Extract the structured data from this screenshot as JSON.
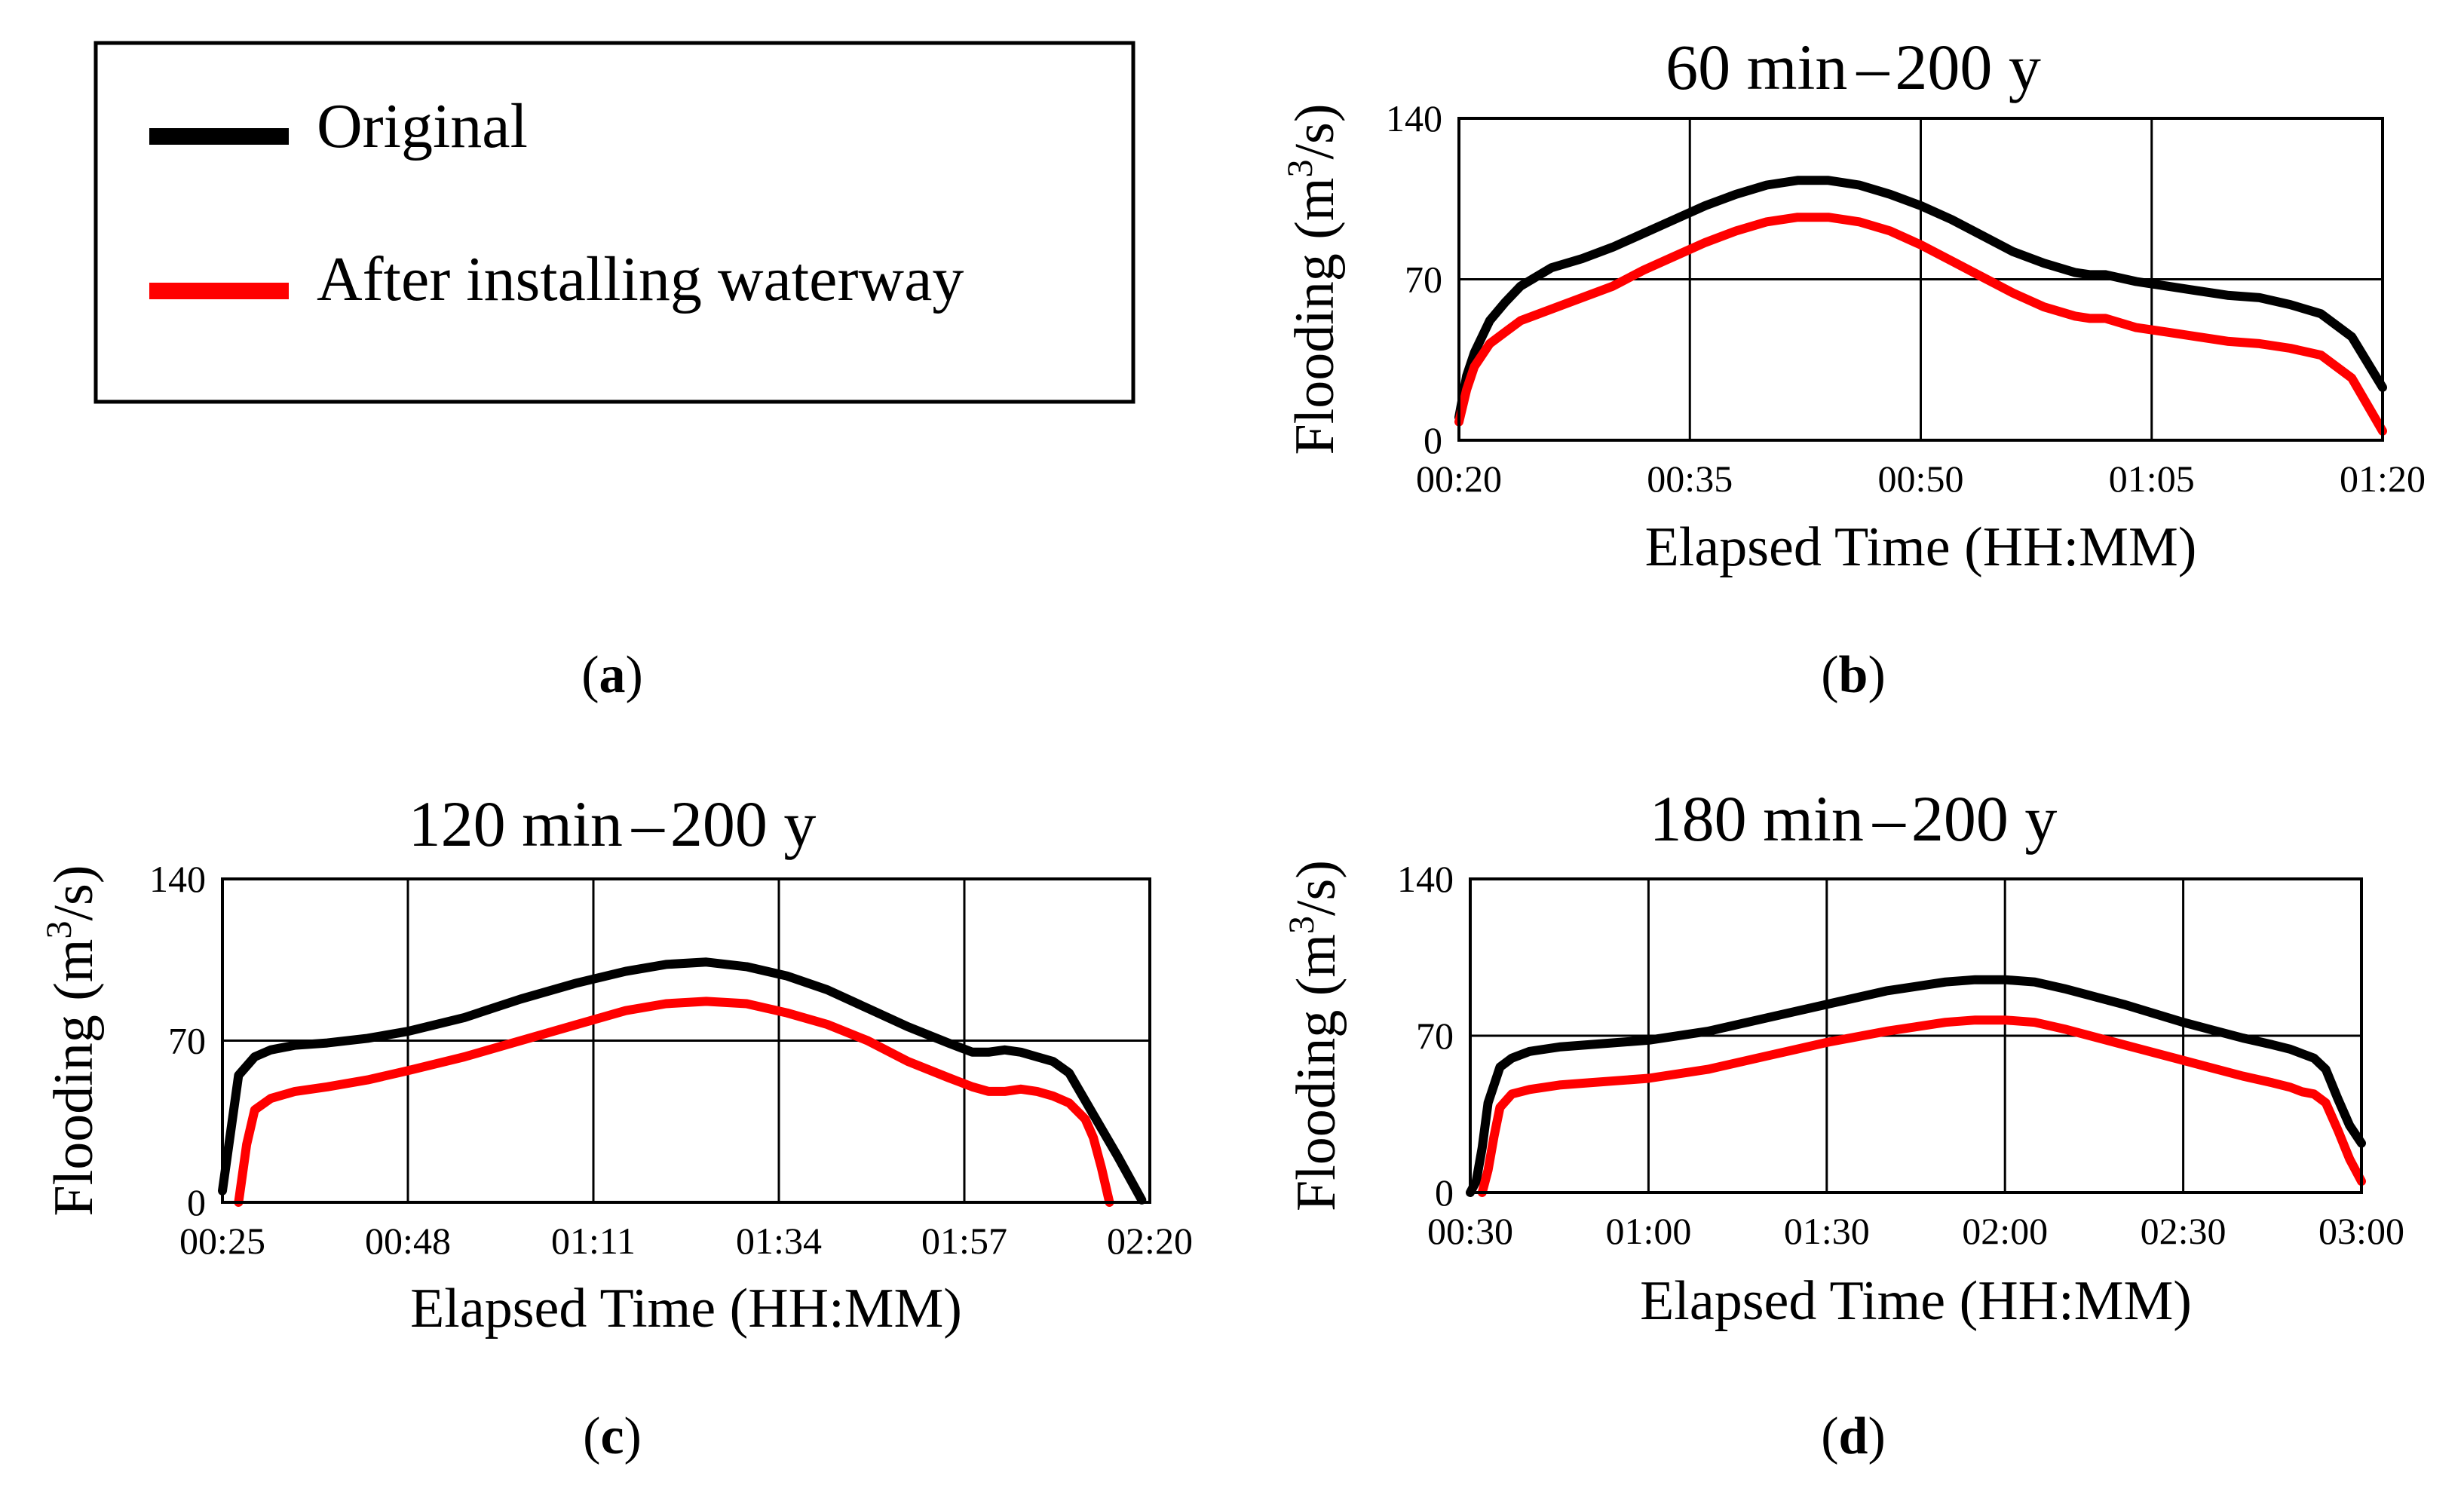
{
  "legend": {
    "entries": [
      {
        "label": "Original",
        "color": "#000000"
      },
      {
        "label": "After installing waterway",
        "color": "#ff0000"
      }
    ]
  },
  "sub_labels": {
    "a": {
      "open": "(",
      "letter": "a",
      "close": ")"
    },
    "b": {
      "open": "(",
      "letter": "b",
      "close": ")"
    },
    "c": {
      "open": "(",
      "letter": "c",
      "close": ")"
    },
    "d": {
      "open": "(",
      "letter": "d",
      "close": ")"
    }
  },
  "chart_data": [
    {
      "id": "b",
      "type": "line",
      "title_left": "60 min",
      "title_dash": "–",
      "title_right": "200 y",
      "xlabel": "Elapsed Time (HH:MM)",
      "ylabel_base": "Flooding (m",
      "ylabel_sup": "3",
      "ylabel_tail": "/s)",
      "xlim": [
        20,
        80
      ],
      "ylim": [
        0,
        140
      ],
      "yticks": [
        0,
        70,
        140
      ],
      "ytick_labels": [
        "0",
        "70",
        "140"
      ],
      "xticks": [
        20,
        35,
        50,
        65,
        80
      ],
      "xtick_labels": [
        "00:20",
        "00:35",
        "00:50",
        "01:05",
        "01:20"
      ],
      "grid": true,
      "series": [
        {
          "name": "Original",
          "color": "#000000",
          "x": [
            20,
            20.5,
            21,
            22,
            23,
            24,
            26,
            28,
            30,
            32,
            34,
            36,
            38,
            40,
            42,
            44,
            46,
            48,
            50,
            52,
            54,
            56,
            58,
            60,
            61,
            62,
            64,
            66,
            68,
            70,
            72,
            74,
            76,
            78,
            80
          ],
          "y": [
            10,
            28,
            38,
            52,
            60,
            67,
            75,
            79,
            84,
            90,
            96,
            102,
            107,
            111,
            113,
            113,
            111,
            107,
            102,
            96,
            89,
            82,
            77,
            73,
            72,
            72,
            69,
            67,
            65,
            63,
            62,
            59,
            55,
            45,
            23
          ]
        },
        {
          "name": "After installing waterway",
          "color": "#ff0000",
          "x": [
            20,
            20.5,
            21,
            22,
            23,
            24,
            26,
            28,
            30,
            32,
            34,
            36,
            38,
            40,
            42,
            44,
            46,
            48,
            50,
            52,
            54,
            56,
            58,
            60,
            61,
            62,
            64,
            66,
            68,
            70,
            72,
            74,
            76,
            78,
            80
          ],
          "y": [
            8,
            22,
            32,
            42,
            47,
            52,
            57,
            62,
            67,
            74,
            80,
            86,
            91,
            95,
            97,
            97,
            95,
            91,
            85,
            78,
            71,
            64,
            58,
            54,
            53,
            53,
            49,
            47,
            45,
            43,
            42,
            40,
            37,
            27,
            4
          ]
        }
      ]
    },
    {
      "id": "c",
      "type": "line",
      "title_left": "120 min",
      "title_dash": "–",
      "title_right": "200 y",
      "xlabel": "Elapsed Time (HH:MM)",
      "ylabel_base": "Flooding (m",
      "ylabel_sup": "3",
      "ylabel_tail": "/s)",
      "xlim": [
        25,
        140
      ],
      "ylim": [
        0,
        140
      ],
      "yticks": [
        0,
        70,
        140
      ],
      "ytick_labels": [
        "0",
        "70",
        "140"
      ],
      "xticks": [
        25,
        48,
        71,
        94,
        117,
        140
      ],
      "xtick_labels": [
        "00:25",
        "00:48",
        "01:11",
        "01:34",
        "01:57",
        "02:20"
      ],
      "grid": true,
      "series": [
        {
          "name": "Original",
          "color": "#000000",
          "x": [
            25,
            26,
            27,
            29,
            31,
            34,
            38,
            43,
            48,
            55,
            62,
            69,
            75,
            80,
            85,
            90,
            95,
            100,
            105,
            110,
            115,
            118,
            120,
            122,
            124,
            126,
            128,
            130,
            133,
            136,
            139
          ],
          "y": [
            5,
            30,
            55,
            63,
            66,
            68,
            69,
            71,
            74,
            80,
            88,
            95,
            100,
            103,
            104,
            102,
            98,
            92,
            84,
            76,
            69,
            65,
            65,
            66,
            65,
            63,
            61,
            56,
            38,
            20,
            1
          ]
        },
        {
          "name": "After installing waterway",
          "color": "#ff0000",
          "x": [
            27,
            28,
            29,
            31,
            34,
            38,
            43,
            48,
            55,
            62,
            69,
            75,
            80,
            85,
            90,
            95,
            100,
            105,
            110,
            115,
            118,
            120,
            122,
            124,
            126,
            128,
            130,
            132,
            133,
            134,
            135
          ],
          "y": [
            0,
            25,
            40,
            45,
            48,
            50,
            53,
            57,
            63,
            70,
            77,
            83,
            86,
            87,
            86,
            82,
            77,
            70,
            61,
            54,
            50,
            48,
            48,
            49,
            48,
            46,
            43,
            36,
            28,
            15,
            0
          ]
        }
      ]
    },
    {
      "id": "d",
      "type": "line",
      "title_left": "180 min",
      "title_dash": "–",
      "title_right": "200 y",
      "xlabel": "Elapsed Time (HH:MM)",
      "ylabel_base": "Flooding (m",
      "ylabel_sup": "3",
      "ylabel_tail": "/s)",
      "xlim": [
        30,
        180
      ],
      "ylim": [
        0,
        140
      ],
      "yticks": [
        0,
        70,
        140
      ],
      "ytick_labels": [
        "0",
        "70",
        "140"
      ],
      "xticks": [
        30,
        60,
        90,
        120,
        150,
        180
      ],
      "xtick_labels": [
        "00:30",
        "01:00",
        "01:30",
        "02:00",
        "02:30",
        "03:00"
      ],
      "grid": true,
      "series": [
        {
          "name": "Original",
          "color": "#000000",
          "x": [
            30,
            31,
            32,
            33,
            35,
            37,
            40,
            45,
            50,
            60,
            70,
            80,
            90,
            100,
            110,
            115,
            120,
            125,
            130,
            140,
            150,
            160,
            165,
            168,
            170,
            172,
            174,
            176,
            178,
            180
          ],
          "y": [
            0,
            5,
            20,
            40,
            56,
            60,
            63,
            65,
            66,
            68,
            72,
            78,
            84,
            90,
            94,
            95,
            95,
            94,
            91,
            84,
            76,
            69,
            66,
            64,
            62,
            60,
            55,
            42,
            30,
            22
          ]
        },
        {
          "name": "After installing waterway",
          "color": "#ff0000",
          "x": [
            32,
            33,
            34,
            35,
            37,
            40,
            45,
            50,
            60,
            70,
            80,
            90,
            100,
            110,
            115,
            120,
            125,
            130,
            140,
            150,
            160,
            165,
            168,
            170,
            172,
            174,
            176,
            178,
            180
          ],
          "y": [
            0,
            10,
            25,
            38,
            44,
            46,
            48,
            49,
            51,
            55,
            61,
            67,
            72,
            76,
            77,
            77,
            76,
            73,
            66,
            59,
            52,
            49,
            47,
            45,
            44,
            40,
            28,
            15,
            5
          ]
        }
      ]
    }
  ]
}
